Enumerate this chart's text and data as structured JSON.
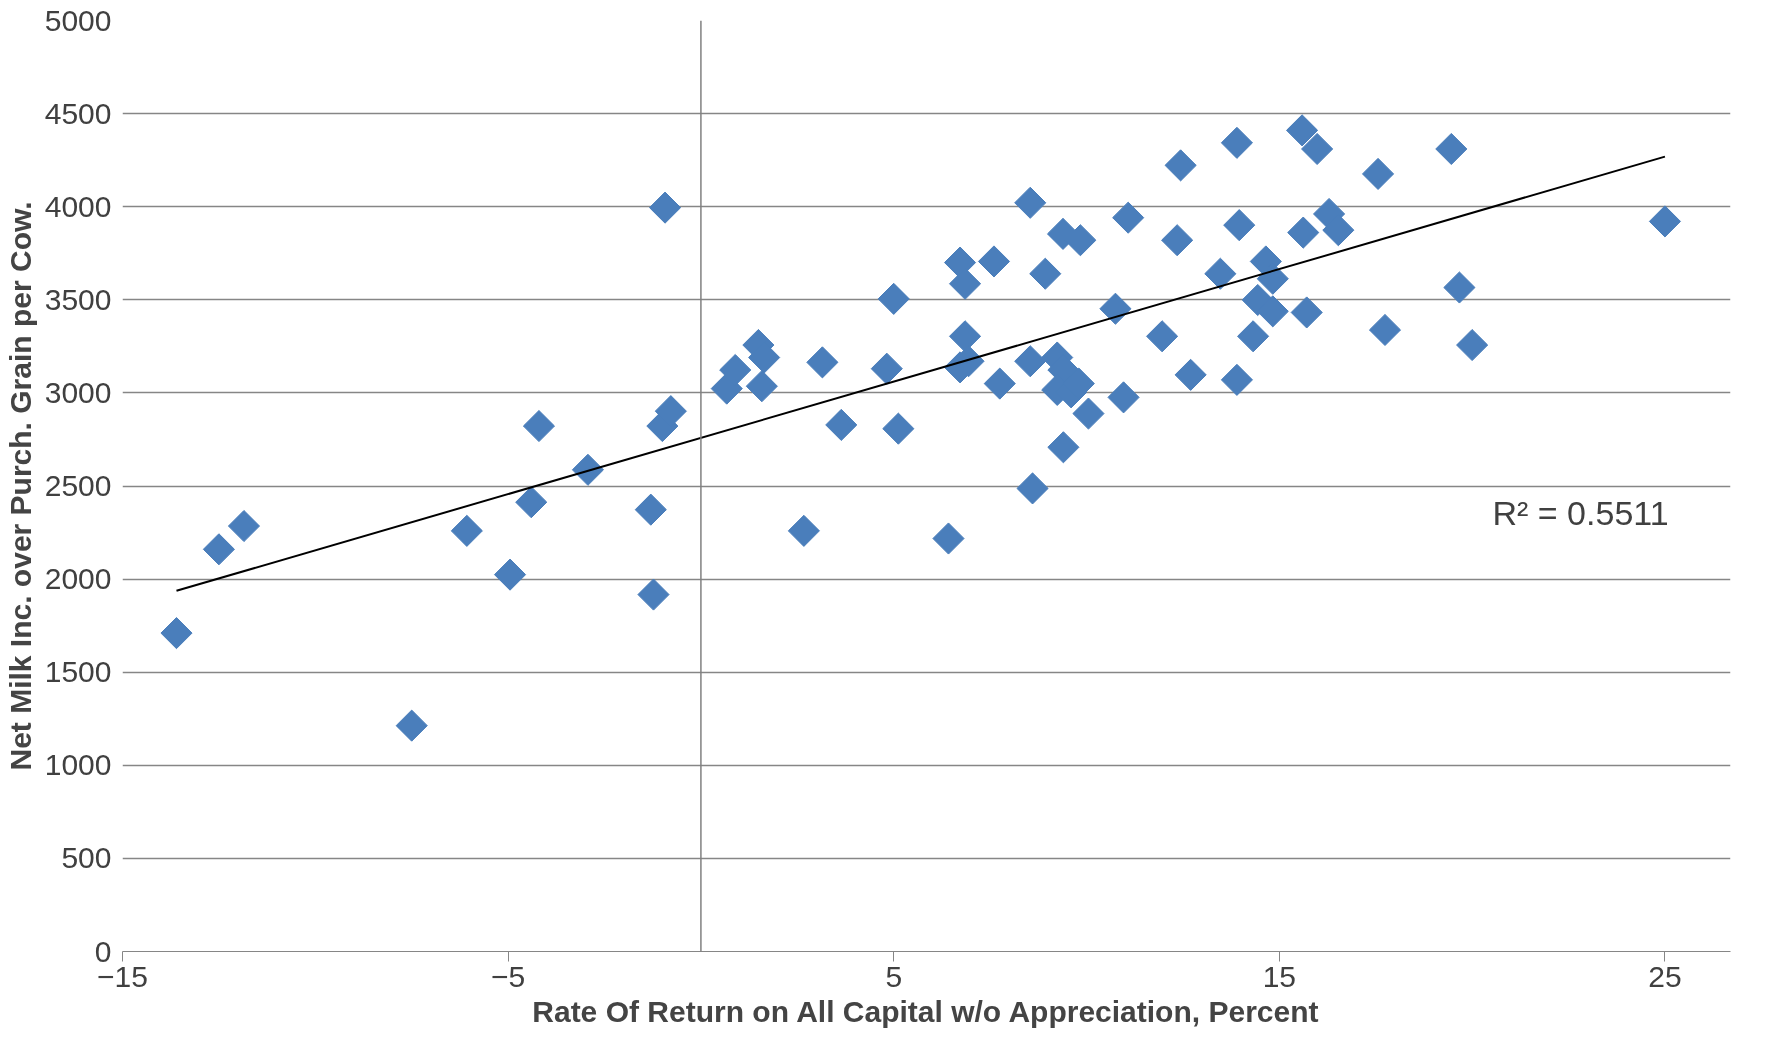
{
  "chart_data": {
    "type": "scatter",
    "xlabel": "Rate Of Return on All Capital w/o Appreciation, Percent",
    "ylabel": "Net Milk Inc. over Purch. Grain per Cow.",
    "annotations": [
      "R² = 0.5511"
    ],
    "xlim": [
      -15,
      26.7
    ],
    "xticks": [
      -15,
      -5,
      5,
      15,
      25
    ],
    "ylim": [
      0,
      5000
    ],
    "yticks": [
      0,
      500,
      1000,
      1500,
      2000,
      2500,
      3000,
      3500,
      4000,
      4500,
      5000
    ],
    "grid": "y",
    "ref_lines": [
      {
        "axis": "x",
        "value": 0,
        "label": null,
        "color": "#808080"
      }
    ],
    "series": [
      {
        "color": "#4a7ebb",
        "marker": "diamond",
        "x": [
          -13.6,
          -12.5,
          -11.85,
          -7.5,
          -6.07,
          -4.95,
          -4.4,
          -4.2,
          -2.93,
          -1.3,
          -1.23,
          -0.93,
          -1.0,
          -0.78,
          0.67,
          0.89,
          1.49,
          1.64,
          1.58,
          3.15,
          2.67,
          3.64,
          4.82,
          5.0,
          5.12,
          6.72,
          6.85,
          6.85,
          6.72,
          6.94,
          7.6,
          7.75,
          6.42,
          8.54,
          8.93,
          8.6,
          8.54,
          9.39,
          9.84,
          9.24,
          9.4,
          9.24,
          9.6,
          9.4,
          9.8,
          10.05,
          10.75,
          11.08,
          10.96,
          11.96,
          12.35,
          12.44,
          12.7,
          13.47,
          13.9,
          13.96,
          13.9,
          14.32,
          14.44,
          14.65,
          14.83,
          14.83,
          15.59,
          15.98,
          15.62,
          15.71,
          16.29,
          16.53,
          17.56,
          17.74,
          19.46,
          19.67,
          20.0,
          25.0
        ],
        "values": [
          1710,
          2160,
          2285,
          1213,
          2259,
          2024,
          2413,
          2822,
          2587,
          2373,
          1917,
          3995,
          2822,
          2902,
          3023,
          3123,
          3257,
          3190,
          3036,
          3164,
          2259,
          2828,
          3130,
          3505,
          2808,
          3700,
          3586,
          3304,
          3137,
          3170,
          3706,
          3050,
          2218,
          4021,
          3640,
          2487,
          3170,
          3854,
          3820,
          3190,
          3123,
          3016,
          3003,
          2708,
          3050,
          2889,
          3452,
          3941,
          2976,
          3304,
          3820,
          4222,
          3097,
          3640,
          4343,
          3901,
          3070,
          3304,
          3499,
          3706,
          3613,
          3438,
          4410,
          4310,
          3861,
          3432,
          3961,
          3874,
          4176,
          3338,
          4310,
          3566,
          3257,
          3921
        ]
      },
      {
        "type": "line",
        "color": "#000000",
        "line_style": "solid",
        "marker": "none",
        "x": [
          -13.6,
          25.0
        ],
        "values": [
          1937,
          4269
        ]
      }
    ]
  }
}
